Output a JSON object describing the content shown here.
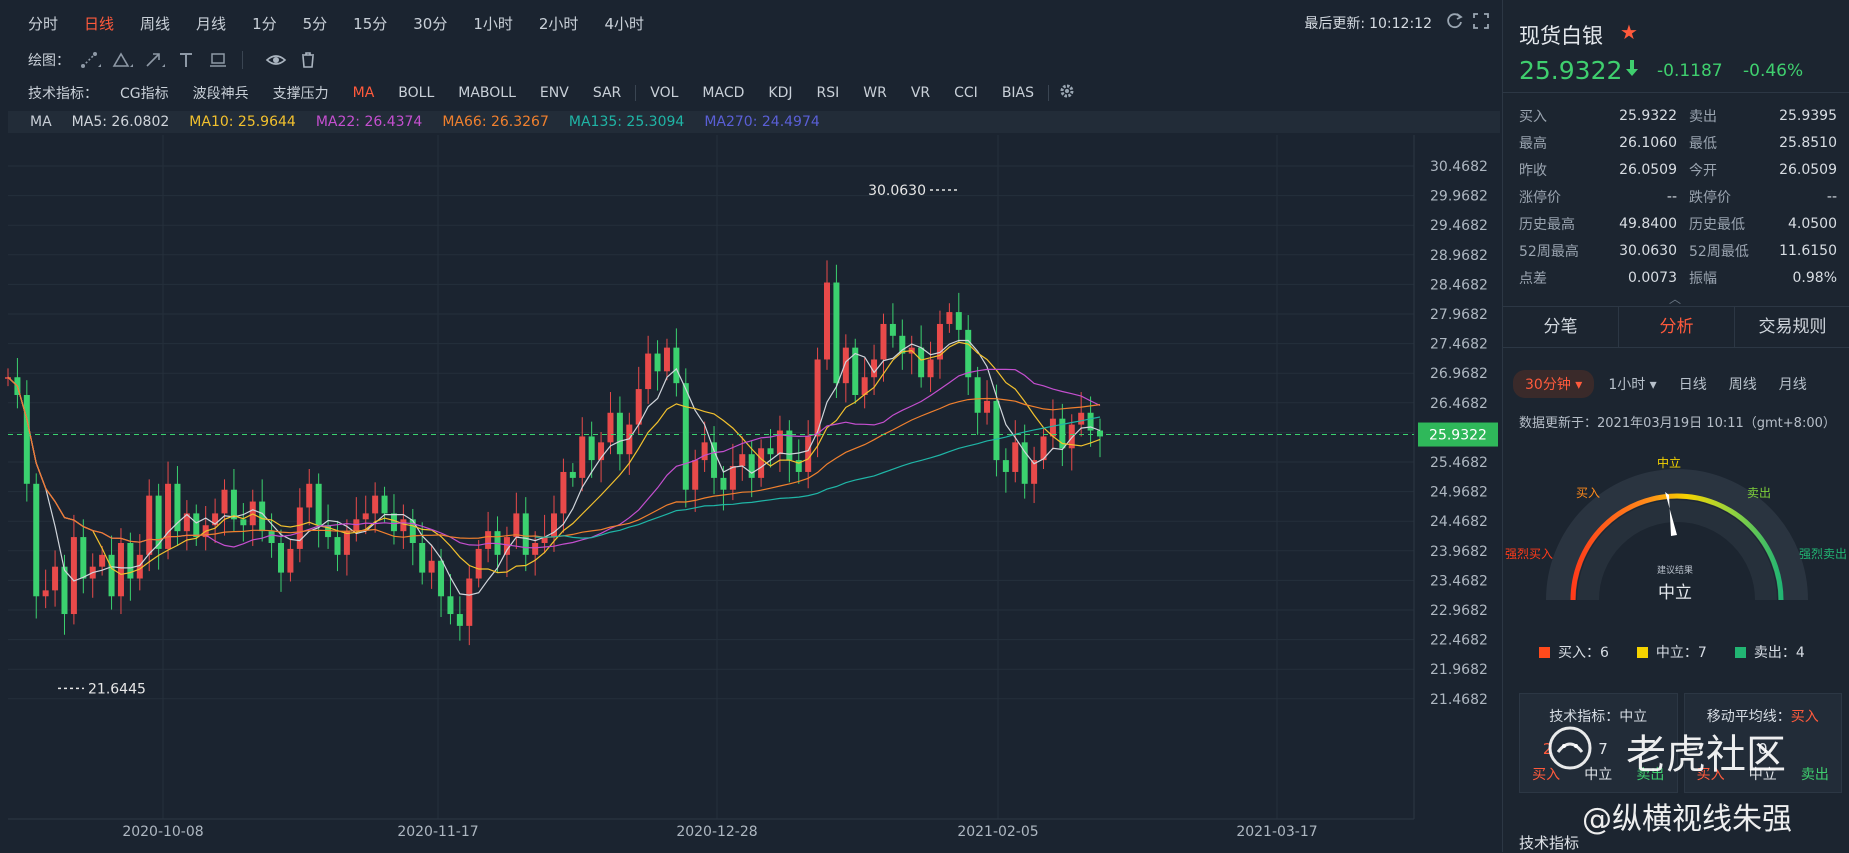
{
  "toolbar": {
    "periods": [
      "分时",
      "日线",
      "周线",
      "月线",
      "1分",
      "5分",
      "15分",
      "30分",
      "1小时",
      "2小时",
      "4小时"
    ],
    "active_period": "日线",
    "last_update_label": "最后更新:",
    "last_update_time": "10:12:12"
  },
  "drawbar": {
    "label": "绘图："
  },
  "indicators": {
    "label": "技术指标：",
    "items": [
      "CG指标",
      "波段神兵",
      "支撑压力",
      "MA",
      "BOLL",
      "MABOLL",
      "ENV",
      "SAR",
      "VOL",
      "MACD",
      "KDJ",
      "RSI",
      "WR",
      "VR",
      "CCI",
      "BIAS"
    ],
    "active": "MA"
  },
  "ma_legend": {
    "title": "MA",
    "items": [
      {
        "text": "MA5: 26.0802",
        "color": "#d0d5db"
      },
      {
        "text": "MA10: 25.9644",
        "color": "#f2c12e"
      },
      {
        "text": "MA22: 26.4374",
        "color": "#c44fcf"
      },
      {
        "text": "MA66: 26.3267",
        "color": "#f0802e"
      },
      {
        "text": "MA135: 25.3094",
        "color": "#1fb5a6"
      },
      {
        "text": "MA270: 24.4974",
        "color": "#5a5fd6"
      }
    ]
  },
  "chart": {
    "y_ticks": [
      "30.4682",
      "29.9682",
      "29.4682",
      "28.9682",
      "28.4682",
      "27.9682",
      "27.4682",
      "26.9682",
      "26.4682",
      "25.9682",
      "25.4682",
      "24.9682",
      "24.4682",
      "23.9682",
      "23.4682",
      "22.9682",
      "22.4682",
      "21.9682",
      "21.4682"
    ],
    "x_ticks": [
      "2020-10-08",
      "2020-11-17",
      "2020-12-28",
      "2021-02-05",
      "2021-03-17"
    ],
    "current_price_tag": "25.9322",
    "high_marker": "30.0630",
    "low_marker": "21.6445"
  },
  "quote": {
    "name": "现货白银",
    "price": "25.9322",
    "change": "-0.1187",
    "change_pct": "-0.46%",
    "stats": [
      [
        "买入",
        "25.9322",
        "卖出",
        "25.9395"
      ],
      [
        "最高",
        "26.1060",
        "最低",
        "25.8510"
      ],
      [
        "昨收",
        "26.0509",
        "今开",
        "26.0509"
      ],
      [
        "涨停价",
        "--",
        "跌停价",
        "--"
      ],
      [
        "历史最高",
        "49.8400",
        "历史最低",
        "4.0500"
      ],
      [
        "52周最高",
        "30.0630",
        "52周最低",
        "11.6150"
      ],
      [
        "点差",
        "0.0073",
        "振幅",
        "0.98%"
      ]
    ]
  },
  "tabs": [
    "分笔",
    "分析",
    "交易规则"
  ],
  "active_tab": "分析",
  "analysis": {
    "periods": [
      "30分钟",
      "1小时",
      "日线",
      "周线",
      "月线"
    ],
    "updated": "数据更新于：2021年03月19日 10:11（gmt+8:00）",
    "gauge_labels": {
      "neutral_top": "中立",
      "buy": "买入",
      "sell": "卖出",
      "strong_buy": "强烈买入",
      "strong_sell": "强烈卖出",
      "result_label": "建议结果",
      "result": "中立"
    },
    "counts": [
      {
        "label": "买入：6",
        "color": "#ff4a1c"
      },
      {
        "label": "中立：7",
        "color": "#f5d300"
      },
      {
        "label": "卖出：4",
        "color": "#22b573"
      }
    ],
    "tech_box": {
      "title": "技术指标：",
      "verdict": "中立",
      "nums": [
        "2",
        "7",
        ""
      ],
      "labels": [
        "买入",
        "中立",
        "卖出"
      ]
    },
    "ma_box": {
      "title": "移动平均线：",
      "verdict": "买入",
      "nums": [
        "",
        "0",
        ""
      ],
      "labels": [
        "买入",
        "中立",
        "卖出"
      ]
    },
    "bottom_label": "技术指标"
  },
  "watermark": {
    "brand": "老虎社区",
    "author": "@纵横视线朱强"
  }
}
